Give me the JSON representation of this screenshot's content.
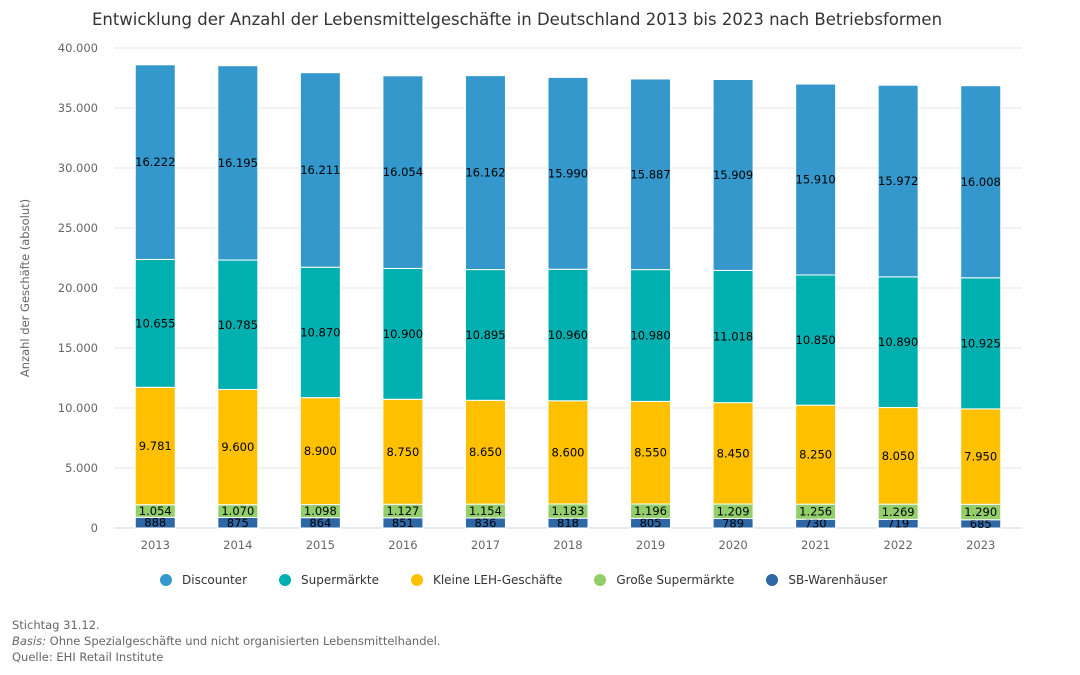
{
  "chart_data": {
    "type": "bar",
    "stacked": true,
    "title": "Entwicklung der Anzahl der Lebensmittelgeschäfte in Deutschland 2013 bis 2023 nach Betriebsformen",
    "ylabel": "Anzahl der Geschäfte (absolut)",
    "xlabel": "",
    "ylim": [
      0,
      40000
    ],
    "yticks": [
      "0",
      "5.000",
      "10.000",
      "15.000",
      "20.000",
      "25.000",
      "30.000",
      "35.000",
      "40.000"
    ],
    "grid": true,
    "legend_position": "bottom",
    "categories": [
      "2013",
      "2014",
      "2015",
      "2016",
      "2017",
      "2018",
      "2019",
      "2020",
      "2021",
      "2022",
      "2023"
    ],
    "series": [
      {
        "name": "SB-Warenhäuser",
        "color": "#2e67a5",
        "values": [
          888,
          875,
          864,
          851,
          836,
          818,
          805,
          789,
          730,
          719,
          685
        ],
        "labels": [
          "888",
          "875",
          "864",
          "851",
          "836",
          "818",
          "805",
          "789",
          "730",
          "719",
          "685"
        ]
      },
      {
        "name": "Große Supermärkte",
        "color": "#92cf6b",
        "values": [
          1054,
          1070,
          1098,
          1127,
          1154,
          1183,
          1196,
          1209,
          1256,
          1269,
          1290
        ],
        "labels": [
          "1.054",
          "1.070",
          "1.098",
          "1.127",
          "1.154",
          "1.183",
          "1.196",
          "1.209",
          "1.256",
          "1.269",
          "1.290"
        ]
      },
      {
        "name": "Kleine LEH-Geschäfte",
        "color": "#ffc000",
        "values": [
          9781,
          9600,
          8900,
          8750,
          8650,
          8600,
          8550,
          8450,
          8250,
          8050,
          7950
        ],
        "labels": [
          "9.781",
          "9.600",
          "8.900",
          "8.750",
          "8.650",
          "8.600",
          "8.550",
          "8.450",
          "8.250",
          "8.050",
          "7.950"
        ]
      },
      {
        "name": "Supermärkte",
        "color": "#00b0b0",
        "values": [
          10655,
          10785,
          10870,
          10900,
          10895,
          10960,
          10980,
          11018,
          10850,
          10890,
          10925
        ],
        "labels": [
          "10.655",
          "10.785",
          "10.870",
          "10.900",
          "10.895",
          "10.960",
          "10.980",
          "11.018",
          "10.850",
          "10.890",
          "10.925"
        ]
      },
      {
        "name": "Discounter",
        "color": "#3498cc",
        "values": [
          16222,
          16195,
          16211,
          16054,
          16162,
          15990,
          15887,
          15909,
          15910,
          15972,
          16008
        ],
        "labels": [
          "16.222",
          "16.195",
          "16.211",
          "16.054",
          "16.162",
          "15.990",
          "15.887",
          "15.909",
          "15.910",
          "15.972",
          "16.008"
        ]
      }
    ],
    "legend_order": [
      "Discounter",
      "Supermärkte",
      "Kleine LEH-Geschäfte",
      "Große Supermärkte",
      "SB-Warenhäuser"
    ]
  },
  "notes": {
    "stichtag": "Stichtag 31.12.",
    "basis_label": "Basis:",
    "basis_text": " Ohne Spezialgeschäfte und nicht organisierten Lebensmittelhandel.",
    "source": "Quelle: EHI Retail Institute"
  }
}
